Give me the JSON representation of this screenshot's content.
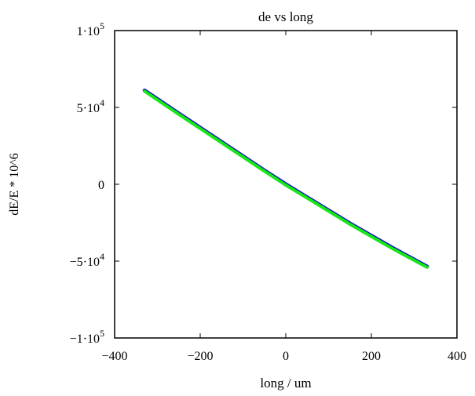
{
  "chart_data": {
    "type": "line",
    "title": "de vs long",
    "xlabel": "long / um",
    "ylabel": "dE/E * 10^6",
    "xlim": [
      -400,
      400
    ],
    "ylim": [
      -100000,
      100000
    ],
    "x_ticks": [
      -400,
      -200,
      0,
      200,
      400
    ],
    "x_tick_labels": [
      "−400",
      "−200",
      "0",
      "200",
      "400"
    ],
    "y_ticks": [
      100000,
      50000,
      0,
      -50000,
      -100000
    ],
    "y_tick_labels": [
      {
        "mantissa": "1·10",
        "exp": "5"
      },
      {
        "mantissa": "5·10",
        "exp": "4"
      },
      {
        "mantissa": "0",
        "exp": ""
      },
      {
        "mantissa": "−5·10",
        "exp": "4"
      },
      {
        "mantissa": "−1·10",
        "exp": "5"
      }
    ],
    "grid": false,
    "series": [
      {
        "color": "#1010c0",
        "x": [
          -330,
          -250,
          -150,
          -50,
          0,
          50,
          150,
          250,
          330
        ],
        "y": [
          61000,
          46000,
          27500,
          9000,
          0,
          -8500,
          -25500,
          -41500,
          -53500
        ]
      },
      {
        "color": "#19e619",
        "x": [
          -330,
          -250,
          -150,
          -50,
          0,
          50,
          150,
          250,
          330
        ],
        "y": [
          60500,
          45500,
          27000,
          8500,
          -500,
          -9000,
          -26000,
          -42000,
          -54000
        ]
      }
    ]
  }
}
